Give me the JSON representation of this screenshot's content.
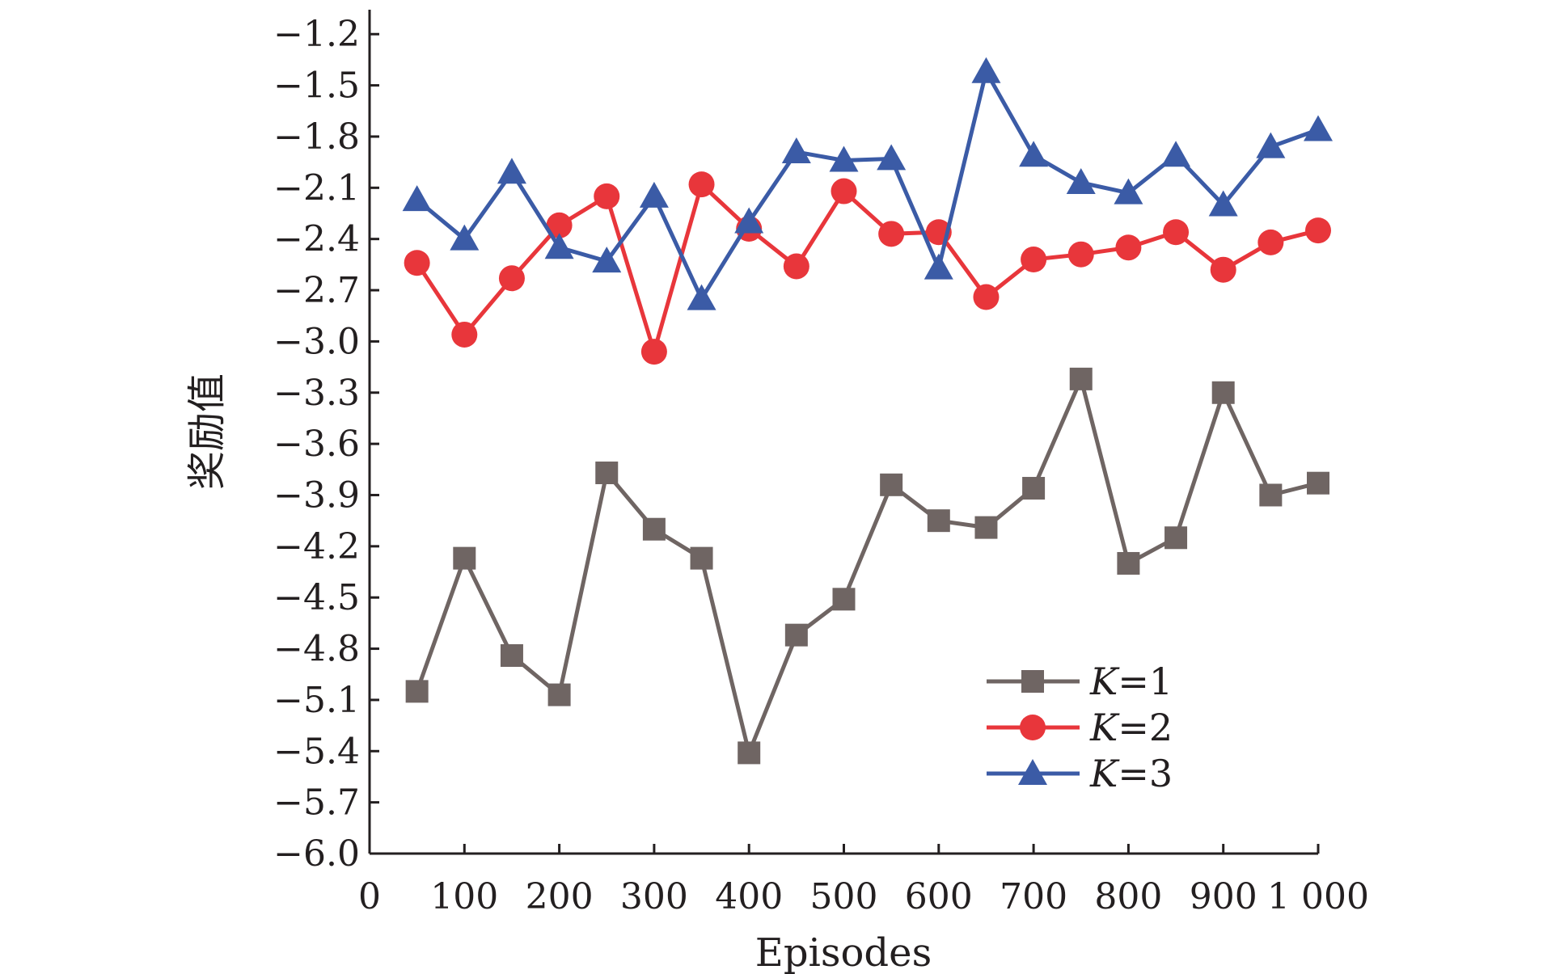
{
  "chart_data": {
    "type": "line",
    "title": "",
    "xlabel": "Episodes",
    "ylabel": "奖励值",
    "xlim": [
      0,
      1000
    ],
    "ylim": [
      -6.0,
      -1.0
    ],
    "x_ticks": [
      {
        "value": 0,
        "label": "0"
      },
      {
        "value": 100,
        "label": "100"
      },
      {
        "value": 200,
        "label": "200"
      },
      {
        "value": 300,
        "label": "300"
      },
      {
        "value": 400,
        "label": "400"
      },
      {
        "value": 500,
        "label": "500"
      },
      {
        "value": 600,
        "label": "600"
      },
      {
        "value": 700,
        "label": "700"
      },
      {
        "value": 800,
        "label": "800"
      },
      {
        "value": 900,
        "label": "900"
      },
      {
        "value": 1000,
        "label": "1 000"
      }
    ],
    "y_ticks": [
      {
        "value": -1.2,
        "label": "−1.2"
      },
      {
        "value": -1.5,
        "label": "−1.5"
      },
      {
        "value": -1.8,
        "label": "−1.8"
      },
      {
        "value": -2.1,
        "label": "−2.1"
      },
      {
        "value": -2.4,
        "label": "−2.4"
      },
      {
        "value": -2.7,
        "label": "−2.7"
      },
      {
        "value": -3.0,
        "label": "−3.0"
      },
      {
        "value": -3.3,
        "label": "−3.3"
      },
      {
        "value": -3.6,
        "label": "−3.6"
      },
      {
        "value": -3.9,
        "label": "−3.9"
      },
      {
        "value": -4.2,
        "label": "−4.2"
      },
      {
        "value": -4.5,
        "label": "−4.5"
      },
      {
        "value": -4.8,
        "label": "−4.8"
      },
      {
        "value": -5.1,
        "label": "−5.1"
      },
      {
        "value": -5.4,
        "label": "−5.4"
      },
      {
        "value": -5.7,
        "label": "−5.7"
      },
      {
        "value": -6.0,
        "label": "−6.0"
      }
    ],
    "grid": false,
    "legend_position": "bottom-right",
    "x": [
      50,
      100,
      150,
      200,
      250,
      300,
      350,
      400,
      450,
      500,
      550,
      600,
      650,
      700,
      750,
      800,
      850,
      900,
      950,
      1000
    ],
    "series": [
      {
        "name": "K=1",
        "legend_var": "K",
        "legend_rest": "=1",
        "color": "#6f6563",
        "marker": "square",
        "values": [
          -5.05,
          -4.27,
          -4.84,
          -5.07,
          -3.77,
          -4.1,
          -4.27,
          -5.41,
          -4.72,
          -4.51,
          -3.84,
          -4.05,
          -4.09,
          -3.86,
          -3.22,
          -4.3,
          -4.15,
          -3.3,
          -3.9,
          -3.83
        ]
      },
      {
        "name": "K=2",
        "legend_var": "K",
        "legend_rest": "=2",
        "color": "#e8363b",
        "marker": "circle",
        "values": [
          -2.54,
          -2.96,
          -2.63,
          -2.32,
          -2.15,
          -3.06,
          -2.08,
          -2.34,
          -2.56,
          -2.12,
          -2.37,
          -2.36,
          -2.74,
          -2.52,
          -2.49,
          -2.45,
          -2.36,
          -2.58,
          -2.42,
          -2.35
        ]
      },
      {
        "name": "K=3",
        "legend_var": "K",
        "legend_rest": "=3",
        "color": "#3b5ba6",
        "marker": "triangle",
        "values": [
          -2.17,
          -2.4,
          -2.01,
          -2.45,
          -2.53,
          -2.15,
          -2.75,
          -2.3,
          -1.89,
          -1.94,
          -1.93,
          -2.57,
          -1.42,
          -1.91,
          -2.07,
          -2.13,
          -1.91,
          -2.2,
          -1.86,
          -1.76
        ]
      }
    ]
  }
}
